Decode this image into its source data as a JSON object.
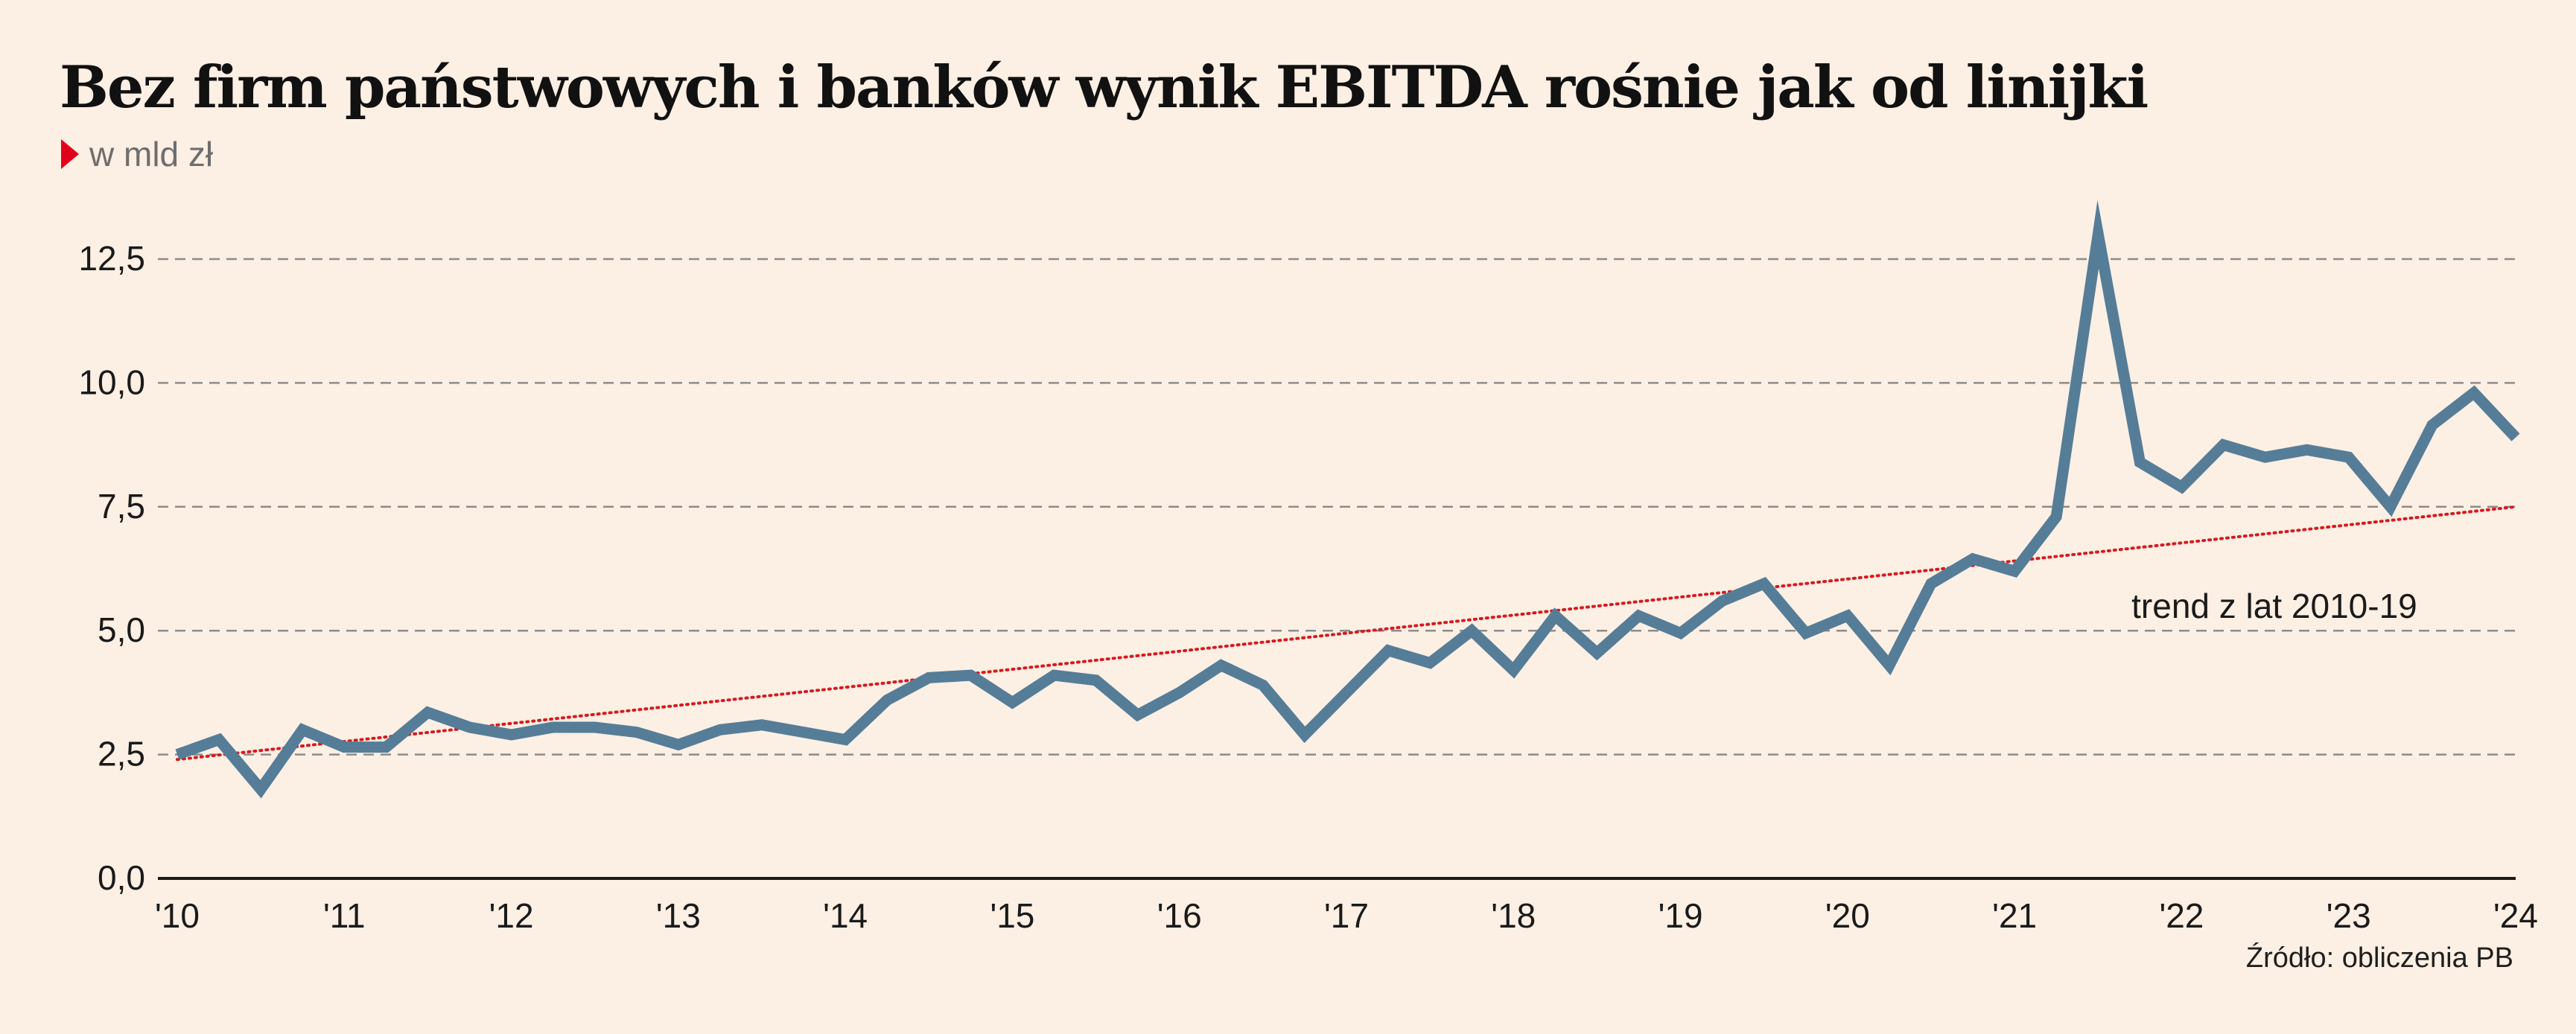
{
  "chart_data": {
    "type": "line",
    "title": "Bez firm państwowych i banków wynik EBITDA rośnie jak od linijki",
    "subtitle": "w mld zł",
    "source": "Źródło: obliczenia PB",
    "xlabel": "",
    "ylabel": "",
    "ylim": [
      0,
      12.5
    ],
    "yticks": [
      0,
      2.5,
      5,
      7.5,
      10,
      12.5
    ],
    "ytick_labels": [
      "0,0",
      "2,5",
      "5,0",
      "7,5",
      "10,0",
      "12,5"
    ],
    "xlim": [
      2010,
      2024
    ],
    "xticks": [
      2010,
      2011,
      2012,
      2013,
      2014,
      2015,
      2016,
      2017,
      2018,
      2019,
      2020,
      2021,
      2022,
      2023,
      2024
    ],
    "xtick_labels": [
      "'10",
      "'11",
      "'12",
      "'13",
      "'14",
      "'15",
      "'16",
      "'17",
      "'18",
      "'19",
      "'20",
      "'21",
      "'22",
      "'23",
      "'24"
    ],
    "grid": true,
    "colors": {
      "series": "#557d98",
      "trend": "#d71920",
      "grid": "#8c8c8c",
      "axis": "#1a1a1a",
      "background": "#fcefe3",
      "accent": "#e3001b"
    },
    "series": [
      {
        "name": "",
        "x": [
          2010.0,
          2010.25,
          2010.5,
          2010.75,
          2011.0,
          2011.25,
          2011.5,
          2011.75,
          2012.0,
          2012.25,
          2012.5,
          2012.75,
          2013.0,
          2013.25,
          2013.5,
          2013.75,
          2014.0,
          2014.25,
          2014.5,
          2014.75,
          2015.0,
          2015.25,
          2015.5,
          2015.75,
          2016.0,
          2016.25,
          2016.5,
          2016.75,
          2017.0,
          2017.25,
          2017.5,
          2017.75,
          2018.0,
          2018.25,
          2018.5,
          2018.75,
          2019.0,
          2019.25,
          2019.5,
          2019.75,
          2020.0,
          2020.25,
          2020.5,
          2020.75,
          2021.0,
          2021.25,
          2021.5,
          2021.75,
          2022.0,
          2022.25,
          2022.5,
          2022.75,
          2023.0,
          2023.25,
          2023.5,
          2023.75,
          2024.0
        ],
        "values": [
          2.5,
          2.8,
          1.8,
          3.0,
          2.65,
          2.65,
          3.35,
          3.05,
          2.9,
          3.05,
          3.05,
          2.95,
          2.7,
          3.0,
          3.1,
          2.95,
          2.8,
          3.6,
          4.05,
          4.1,
          3.55,
          4.1,
          4.0,
          3.3,
          3.75,
          4.3,
          3.9,
          2.9,
          3.75,
          4.6,
          4.35,
          5.0,
          4.2,
          5.3,
          4.55,
          5.3,
          4.95,
          5.6,
          5.95,
          4.95,
          5.3,
          4.3,
          5.95,
          6.45,
          6.2,
          7.3,
          13.0,
          8.4,
          7.9,
          8.75,
          8.5,
          8.65,
          8.5,
          7.5,
          9.15,
          9.8,
          8.9
        ]
      },
      {
        "name": "trend z lat 2010-19",
        "style": "dotted",
        "x": [
          2010.0,
          2024.0
        ],
        "values": [
          2.4,
          7.5
        ]
      }
    ],
    "annotations": [
      {
        "text": "trend z lat 2010-19",
        "x": 2021.7,
        "y": 5.5
      }
    ]
  }
}
